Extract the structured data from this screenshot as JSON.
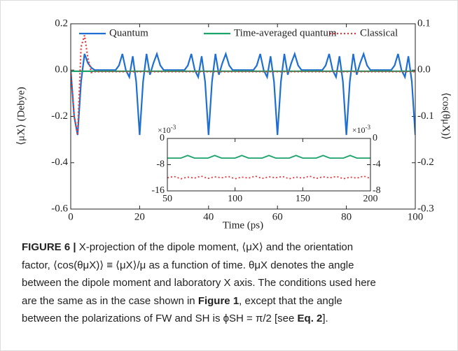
{
  "chart_data": [
    {
      "type": "line",
      "xlabel": "Time (ps)",
      "ylabel": "⟨μX⟩ (Debye)",
      "y2label": "⟨cos(θμX)⟩",
      "xlim": [
        0,
        100
      ],
      "xticks": [
        0,
        20,
        40,
        60,
        80,
        100
      ],
      "ylim": [
        -0.6,
        0.2
      ],
      "yticks": [
        0.2,
        {
          "value": 0,
          "label": "0.0"
        },
        -0.2,
        -0.4,
        -0.6
      ],
      "y2lim": [
        -0.3,
        0.1
      ],
      "y2ticks": [
        0.1,
        {
          "value": 0,
          "label": "0.0"
        },
        -0.1,
        -0.2,
        -0.3
      ],
      "legend": "top",
      "x": [
        0,
        1,
        2,
        3,
        4,
        5,
        6,
        7,
        8,
        9,
        10,
        11,
        12,
        13,
        14,
        15,
        16,
        17,
        18,
        19,
        20,
        21,
        22,
        23,
        24,
        25,
        26,
        27,
        28,
        29,
        30,
        31,
        32,
        33,
        34,
        35,
        36,
        37,
        38,
        39,
        40,
        41,
        42,
        43,
        44,
        45,
        46,
        47,
        48,
        49,
        50,
        51,
        52,
        53,
        54,
        55,
        56,
        57,
        58,
        59,
        60,
        61,
        62,
        63,
        64,
        65,
        66,
        67,
        68,
        69,
        70,
        71,
        72,
        73,
        74,
        75,
        76,
        77,
        78,
        79,
        80,
        81,
        82,
        83,
        84,
        85,
        86,
        87,
        88,
        89,
        90,
        91,
        92,
        93,
        94,
        95,
        96,
        97,
        98,
        99,
        100
      ],
      "series": [
        {
          "name": "Quantum",
          "color": "#1f6fd1",
          "style": "solid",
          "values": [
            0,
            -0.2,
            -0.28,
            -0.05,
            0.07,
            0.03,
            0.01,
            0,
            0,
            0,
            0,
            0,
            0,
            0,
            0.02,
            0.07,
            0,
            -0.03,
            0.06,
            -0.05,
            -0.28,
            -0.05,
            0.07,
            -0.02,
            0.03,
            0.07,
            0.02,
            0,
            0,
            0,
            0,
            0,
            0,
            0,
            0.02,
            0.07,
            0,
            -0.03,
            0.06,
            -0.05,
            -0.28,
            -0.05,
            0.07,
            -0.02,
            0.03,
            0.07,
            0.02,
            0,
            0,
            0,
            0,
            0,
            0,
            0,
            0.02,
            0.07,
            0,
            -0.03,
            0.06,
            -0.05,
            -0.28,
            -0.05,
            0.07,
            -0.02,
            0.03,
            0.07,
            0.02,
            0,
            0,
            0,
            0,
            0,
            0,
            0,
            0.02,
            0.07,
            0,
            -0.03,
            0.06,
            -0.05,
            -0.28,
            -0.05,
            0.07,
            -0.02,
            0.03,
            0.07,
            0.02,
            0,
            0,
            0,
            0,
            0,
            0,
            0,
            0.02,
            0.07,
            0,
            -0.03,
            0.06,
            -0.05,
            -0.28
          ]
        },
        {
          "name": "Time-averaged quantum",
          "color": "#1aa36b",
          "style": "solid",
          "values": [
            -0.005,
            -0.005,
            -0.005,
            -0.005,
            -0.005,
            -0.005,
            -0.005,
            -0.005,
            -0.005,
            -0.005,
            -0.005,
            -0.005,
            -0.005,
            -0.005,
            -0.005,
            -0.005,
            -0.005,
            -0.005,
            -0.005,
            -0.005,
            -0.005,
            -0.005,
            -0.005,
            -0.005,
            -0.005,
            -0.005,
            -0.005,
            -0.005,
            -0.005,
            -0.005,
            -0.005,
            -0.005,
            -0.005,
            -0.005,
            -0.005,
            -0.005,
            -0.005,
            -0.005,
            -0.005,
            -0.005,
            -0.005,
            -0.005,
            -0.005,
            -0.005,
            -0.005,
            -0.005,
            -0.005,
            -0.005,
            -0.005,
            -0.005,
            -0.005,
            -0.005,
            -0.005,
            -0.005,
            -0.005,
            -0.005,
            -0.005,
            -0.005,
            -0.005,
            -0.005,
            -0.005,
            -0.005,
            -0.005,
            -0.005,
            -0.005,
            -0.005,
            -0.005,
            -0.005,
            -0.005,
            -0.005,
            -0.005,
            -0.005,
            -0.005,
            -0.005,
            -0.005,
            -0.005,
            -0.005,
            -0.005,
            -0.005,
            -0.005,
            -0.005,
            -0.005,
            -0.005,
            -0.005,
            -0.005,
            -0.005,
            -0.005,
            -0.005,
            -0.005,
            -0.005,
            -0.005,
            -0.005,
            -0.005,
            -0.005,
            -0.005,
            -0.005,
            -0.005,
            -0.005,
            -0.005,
            -0.005,
            -0.005
          ]
        },
        {
          "name": "Classical",
          "color": "#e8343a",
          "style": "dotted",
          "values": [
            0,
            -0.2,
            -0.28,
            0.1,
            0.15,
            0.05,
            -0.01,
            -0.007,
            -0.007,
            -0.007,
            -0.007,
            -0.007,
            -0.007,
            -0.007,
            -0.007,
            -0.007,
            -0.007,
            -0.007,
            -0.007,
            -0.007,
            -0.007,
            -0.007,
            -0.007,
            -0.007,
            -0.007,
            -0.007,
            -0.007,
            -0.007,
            -0.007,
            -0.007,
            -0.007,
            -0.007,
            -0.007,
            -0.007,
            -0.007,
            -0.007,
            -0.007,
            -0.007,
            -0.007,
            -0.007,
            -0.007,
            -0.007,
            -0.007,
            -0.007,
            -0.007,
            -0.007,
            -0.007,
            -0.007,
            -0.007,
            -0.007,
            -0.007,
            -0.007,
            -0.007,
            -0.007,
            -0.007,
            -0.007,
            -0.007,
            -0.007,
            -0.007,
            -0.007,
            -0.007,
            -0.007,
            -0.007,
            -0.007,
            -0.007,
            -0.007,
            -0.007,
            -0.007,
            -0.007,
            -0.007,
            -0.007,
            -0.007,
            -0.007,
            -0.007,
            -0.007,
            -0.007,
            -0.007,
            -0.007,
            -0.007,
            -0.007,
            -0.007,
            -0.007,
            -0.007,
            -0.007,
            -0.007,
            -0.007,
            -0.007,
            -0.007,
            -0.007,
            -0.007,
            -0.007,
            -0.007,
            -0.007,
            -0.007,
            -0.007,
            -0.007,
            -0.007,
            -0.007,
            -0.007,
            -0.007,
            -0.007
          ]
        }
      ]
    },
    {
      "type": "line",
      "xlim": [
        50,
        200
      ],
      "xticks": [
        50,
        100,
        150,
        200
      ],
      "ylim": [
        -16,
        0
      ],
      "yticks": [
        0,
        -8,
        -16
      ],
      "y2lim": [
        -8,
        0
      ],
      "y2ticks": [
        0,
        -4,
        -8
      ],
      "multiplier": {
        "base": "×10",
        "exponent": "-3"
      },
      "x": [
        50,
        55,
        60,
        65,
        70,
        75,
        80,
        85,
        90,
        95,
        100,
        105,
        110,
        115,
        120,
        125,
        130,
        135,
        140,
        145,
        150,
        155,
        160,
        165,
        170,
        175,
        180,
        185,
        190,
        195,
        200
      ],
      "series": [
        {
          "color": "#1aa36b",
          "style": "solid",
          "values": [
            -6,
            -6,
            -6,
            -5.2,
            -6,
            -6,
            -6,
            -5.2,
            -6,
            -6,
            -6,
            -5.2,
            -6,
            -6,
            -6,
            -5.2,
            -6,
            -6,
            -6,
            -5.2,
            -6,
            -6,
            -6,
            -5.2,
            -6,
            -6,
            -6,
            -5.2,
            -6,
            -6,
            -6
          ]
        },
        {
          "color": "#e8343a",
          "style": "dotted",
          "values": [
            -12,
            -11.6,
            -12.3,
            -11.8,
            -12.1,
            -11.5,
            -12.2,
            -11.7,
            -12,
            -11.6,
            -12.3,
            -11.8,
            -12.1,
            -11.5,
            -12.2,
            -11.7,
            -12,
            -11.6,
            -12.3,
            -11.8,
            -12.1,
            -11.5,
            -12.2,
            -11.7,
            -12,
            -11.6,
            -12.3,
            -11.8,
            -12.1,
            -11.5,
            -12.2
          ]
        }
      ]
    }
  ],
  "caption": {
    "lines": [
      [
        {
          "t": "FIGURE 6 |",
          "b": true
        },
        {
          "t": " X-projection of the dipole moment, ⟨μX⟩ and the orientation",
          "b": false
        }
      ],
      [
        {
          "t": "factor, ⟨cos(θμX)⟩ ≡ ⟨μX⟩/μ as a function of time. θμX denotes the angle",
          "b": false
        }
      ],
      [
        {
          "t": "between the dipole moment and laboratory X axis. The conditions used here",
          "b": false
        }
      ],
      [
        {
          "t": "are the same as in the case shown in ",
          "b": false
        },
        {
          "t": "Figure 1",
          "b": true
        },
        {
          "t": ", except that the angle",
          "b": false
        }
      ],
      [
        {
          "t": "between the polarizations of FW and SH is ϕSH = π/2 [see ",
          "b": false
        },
        {
          "t": "Eq. 2",
          "b": true
        },
        {
          "t": "].",
          "b": false
        }
      ]
    ]
  }
}
